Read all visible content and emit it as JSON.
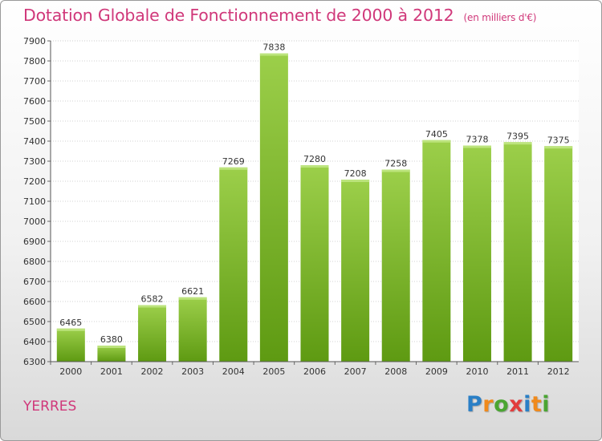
{
  "header": {
    "title": "Dotation Globale de Fonctionnement de 2000 à 2012",
    "units": "(en milliers d'€)"
  },
  "commune": "YERRES",
  "logo": {
    "letters": [
      "P",
      "r",
      "o",
      "x",
      "i",
      "t",
      "i"
    ],
    "colors": [
      "#2a7fc6",
      "#f08a1c",
      "#4aa532",
      "#e23c3c",
      "#2a7fc6",
      "#f08a1c",
      "#4aa532"
    ]
  },
  "colors": {
    "bar_top": "#9ccf4a",
    "bar_bottom": "#5e9a12",
    "title": "#d0387a",
    "grid": "#d0d0d0"
  },
  "chart_data": {
    "type": "bar",
    "title": "Dotation Globale de Fonctionnement de 2000 à 2012",
    "ylabel": "en milliers d'€",
    "xlabel": "",
    "categories": [
      "2000",
      "2001",
      "2002",
      "2003",
      "2004",
      "2005",
      "2006",
      "2007",
      "2008",
      "2009",
      "2010",
      "2011",
      "2012"
    ],
    "values": [
      6465,
      6380,
      6582,
      6621,
      7269,
      7838,
      7280,
      7208,
      7258,
      7405,
      7378,
      7395,
      7375
    ],
    "ylim": [
      6300,
      7900
    ],
    "yticks": [
      6300,
      6400,
      6500,
      6600,
      6700,
      6800,
      6900,
      7000,
      7100,
      7200,
      7300,
      7400,
      7500,
      7600,
      7700,
      7800,
      7900
    ],
    "grid": true
  }
}
